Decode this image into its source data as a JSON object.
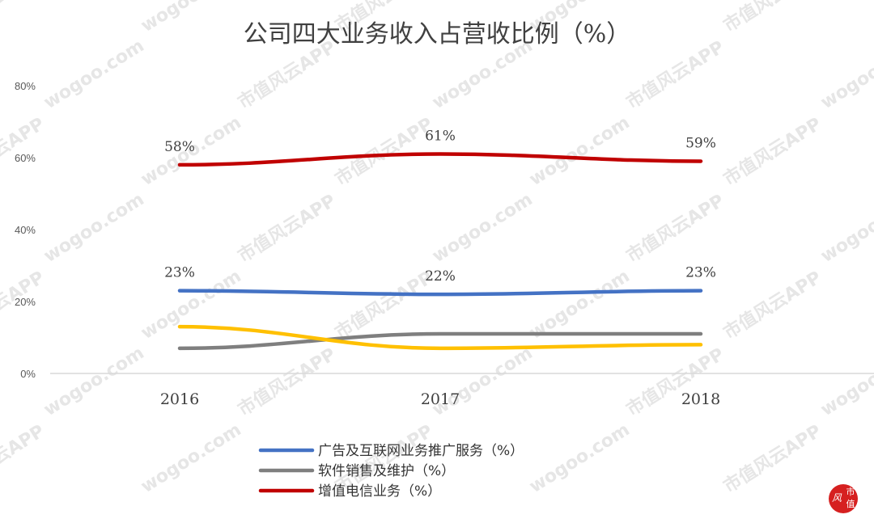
{
  "chart_data": {
    "type": "line",
    "title": "公司四大业务收入占营收比例（%）",
    "x": [
      "2016",
      "2017",
      "2018"
    ],
    "ylim": [
      0,
      80
    ],
    "yticks": [
      "0%",
      "20%",
      "40%",
      "60%",
      "80%"
    ],
    "ytick_values": [
      0,
      20,
      40,
      60,
      80
    ],
    "grid": false,
    "legend_position": "bottom",
    "series": [
      {
        "name": "广告及互联网业务推广服务（%）",
        "values": [
          23,
          22,
          23
        ],
        "labels": [
          "23%",
          "22%",
          "23%"
        ],
        "color": "#4472c4",
        "in_legend": true
      },
      {
        "name": "软件销售及维护（%）",
        "values": [
          7,
          11,
          11
        ],
        "labels": [],
        "color": "#7f7f7f",
        "in_legend": true
      },
      {
        "name": "增值电信业务（%）",
        "values": [
          58,
          61,
          59
        ],
        "labels": [
          "58%",
          "61%",
          "59%"
        ],
        "color": "#c00000",
        "in_legend": true
      },
      {
        "name": "",
        "values": [
          13,
          7,
          8
        ],
        "labels": [],
        "color": "#ffc000",
        "in_legend": false
      }
    ]
  },
  "watermark": {
    "text": "市值风云APP",
    "site": "wogoo.com"
  },
  "logo": {
    "text": "市值",
    "color": "#d62020"
  }
}
